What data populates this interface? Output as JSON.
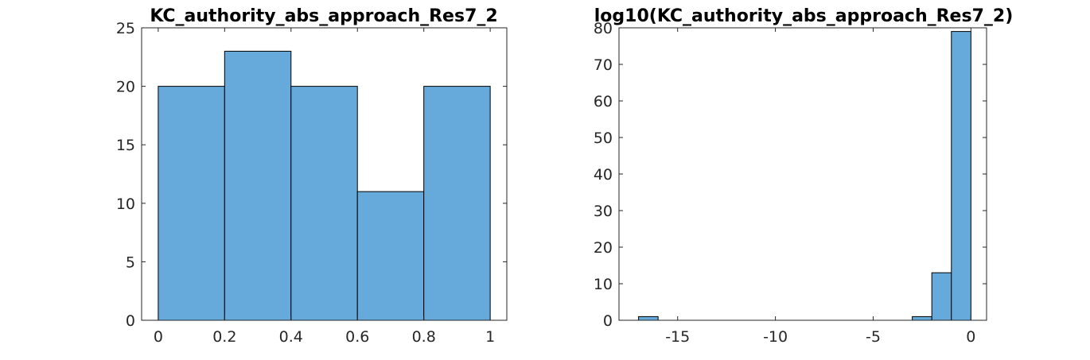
{
  "chart_data": [
    {
      "type": "bar",
      "title": "KC_authority_abs_approach_Res7_2",
      "xlabel": "",
      "ylabel": "",
      "xlim": [
        -0.05,
        1.05
      ],
      "ylim": [
        0,
        25
      ],
      "xticks": [
        0,
        0.2,
        0.4,
        0.6,
        0.8,
        1
      ],
      "xtick_labels": [
        "0",
        "0.2",
        "0.4",
        "0.6",
        "0.8",
        "1"
      ],
      "yticks": [
        0,
        5,
        10,
        15,
        20,
        25
      ],
      "ytick_labels": [
        "0",
        "5",
        "10",
        "15",
        "20",
        "25"
      ],
      "bin_edges": [
        0,
        0.2,
        0.4,
        0.6,
        0.8,
        1.0
      ],
      "values": [
        20,
        23,
        20,
        11,
        20
      ],
      "grid": false,
      "legend": "none",
      "bar_color": "#66AADB",
      "edge_color": "#000000"
    },
    {
      "type": "bar",
      "title": "log10(KC_authority_abs_approach_Res7_2)",
      "xlabel": "",
      "ylabel": "",
      "xlim": [
        -18,
        0.8
      ],
      "ylim": [
        0,
        80
      ],
      "xticks": [
        -15,
        -10,
        -5,
        0
      ],
      "xtick_labels": [
        "-15",
        "-10",
        "-5",
        "0"
      ],
      "yticks": [
        0,
        10,
        20,
        30,
        40,
        50,
        60,
        70,
        80
      ],
      "ytick_labels": [
        "0",
        "10",
        "20",
        "30",
        "40",
        "50",
        "60",
        "70",
        "80"
      ],
      "bin_edges": [
        -17,
        -16,
        -15,
        -14,
        -13,
        -12,
        -11,
        -10,
        -9,
        -8,
        -7,
        -6,
        -5,
        -4,
        -3,
        -2,
        -1,
        0
      ],
      "values": [
        1,
        0,
        0,
        0,
        0,
        0,
        0,
        0,
        0,
        0,
        0,
        0,
        0,
        0,
        1,
        13,
        79
      ],
      "grid": false,
      "legend": "none",
      "bar_color": "#66AADB",
      "edge_color": "#000000"
    }
  ]
}
